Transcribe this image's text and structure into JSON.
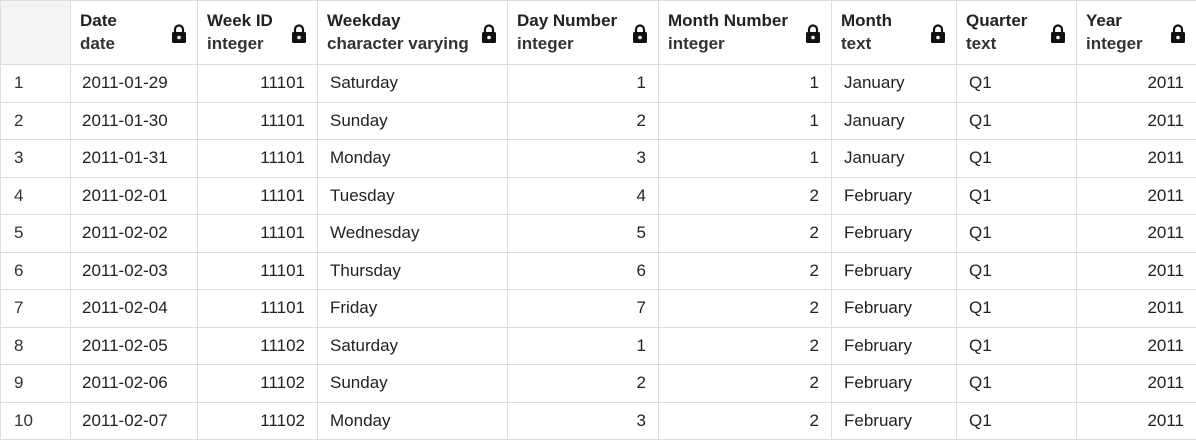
{
  "columns": [
    {
      "name": "Date",
      "type": "date"
    },
    {
      "name": "Week ID",
      "type": "integer"
    },
    {
      "name": "Weekday",
      "type": "character varying"
    },
    {
      "name": "Day Number",
      "type": "integer"
    },
    {
      "name": "Month Number",
      "type": "integer"
    },
    {
      "name": "Month",
      "type": "text"
    },
    {
      "name": "Quarter",
      "type": "text"
    },
    {
      "name": "Year",
      "type": "integer"
    }
  ],
  "rows": [
    {
      "n": "1",
      "date": "2011-01-29",
      "week_id": "11101",
      "weekday": "Saturday",
      "day_number": "1",
      "month_number": "1",
      "month": "January",
      "quarter": "Q1",
      "year": "2011"
    },
    {
      "n": "2",
      "date": "2011-01-30",
      "week_id": "11101",
      "weekday": "Sunday",
      "day_number": "2",
      "month_number": "1",
      "month": "January",
      "quarter": "Q1",
      "year": "2011"
    },
    {
      "n": "3",
      "date": "2011-01-31",
      "week_id": "11101",
      "weekday": "Monday",
      "day_number": "3",
      "month_number": "1",
      "month": "January",
      "quarter": "Q1",
      "year": "2011"
    },
    {
      "n": "4",
      "date": "2011-02-01",
      "week_id": "11101",
      "weekday": "Tuesday",
      "day_number": "4",
      "month_number": "2",
      "month": "February",
      "quarter": "Q1",
      "year": "2011"
    },
    {
      "n": "5",
      "date": "2011-02-02",
      "week_id": "11101",
      "weekday": "Wednesday",
      "day_number": "5",
      "month_number": "2",
      "month": "February",
      "quarter": "Q1",
      "year": "2011"
    },
    {
      "n": "6",
      "date": "2011-02-03",
      "week_id": "11101",
      "weekday": "Thursday",
      "day_number": "6",
      "month_number": "2",
      "month": "February",
      "quarter": "Q1",
      "year": "2011"
    },
    {
      "n": "7",
      "date": "2011-02-04",
      "week_id": "11101",
      "weekday": "Friday",
      "day_number": "7",
      "month_number": "2",
      "month": "February",
      "quarter": "Q1",
      "year": "2011"
    },
    {
      "n": "8",
      "date": "2011-02-05",
      "week_id": "11102",
      "weekday": "Saturday",
      "day_number": "1",
      "month_number": "2",
      "month": "February",
      "quarter": "Q1",
      "year": "2011"
    },
    {
      "n": "9",
      "date": "2011-02-06",
      "week_id": "11102",
      "weekday": "Sunday",
      "day_number": "2",
      "month_number": "2",
      "month": "February",
      "quarter": "Q1",
      "year": "2011"
    },
    {
      "n": "10",
      "date": "2011-02-07",
      "week_id": "11102",
      "weekday": "Monday",
      "day_number": "3",
      "month_number": "2",
      "month": "February",
      "quarter": "Q1",
      "year": "2011"
    }
  ],
  "icons": {
    "header_lock": "lock-icon"
  }
}
